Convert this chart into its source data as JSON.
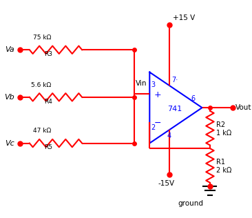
{
  "bg_color": "#ffffff",
  "red": "#ff0000",
  "blue": "#0000ff",
  "black": "#000000",
  "R3_label": "75 kΩ",
  "R4_label": "5.6 kΩ",
  "R5_label": "47 kΩ",
  "R2_label_line1": "R2",
  "R2_label_line2": "1 kΩ",
  "R1_label_line1": "R1",
  "R1_label_line2": "2 kΩ",
  "Vin_label": "Vin",
  "Vout_label": "Vout",
  "V_plus_label": "+15 V",
  "V_minus_label": "-15V",
  "op_amp_label": "741",
  "ground_label": "ground",
  "R3_sublabel": "R3",
  "R4_sublabel": "R4",
  "R5_sublabel": "R5",
  "Va_label": "Va",
  "Vb_label": "Vb",
  "Vc_label": "Vc",
  "pin3": "3",
  "pin2": "2",
  "pin6": "6",
  "pin7": "7·",
  "pin4": "4"
}
